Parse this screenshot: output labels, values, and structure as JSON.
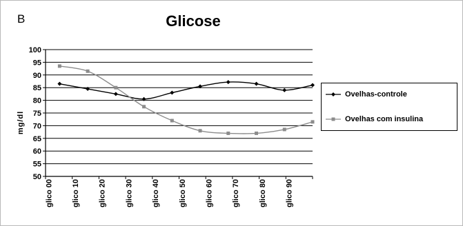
{
  "panel_label": "B",
  "chart_data": {
    "type": "line",
    "title": "Glicose",
    "xlabel": "",
    "ylabel": "mg/dl",
    "ylim": [
      50,
      100
    ],
    "y_ticks": [
      50,
      55,
      60,
      65,
      70,
      75,
      80,
      85,
      90,
      95,
      100
    ],
    "x_ticks": [
      "glico 00",
      "glico 10",
      "glico 20",
      "glico 30",
      "glico 40",
      "glico 50",
      "glico 60",
      "glico 70",
      "glico 80",
      "glico 90"
    ],
    "grid": true,
    "legend_position": "right",
    "x_min": 0,
    "x_max": 95,
    "series": [
      {
        "name": "Ovelhas-controle",
        "color": "#000000",
        "marker": "diamond",
        "x": [
          5,
          15,
          25,
          35,
          45,
          55,
          65,
          75,
          85,
          95
        ],
        "values": [
          86.5,
          84.5,
          82.5,
          80.5,
          83,
          85.5,
          87.2,
          86.5,
          84,
          86
        ]
      },
      {
        "name": "Ovelhas com insulina",
        "color": "#8c8c8c",
        "marker": "square",
        "x": [
          5,
          15,
          25,
          35,
          45,
          55,
          65,
          75,
          85,
          95
        ],
        "values": [
          93.5,
          91.5,
          85,
          77.5,
          72,
          68,
          67,
          67,
          68.5,
          71.5
        ]
      }
    ]
  }
}
